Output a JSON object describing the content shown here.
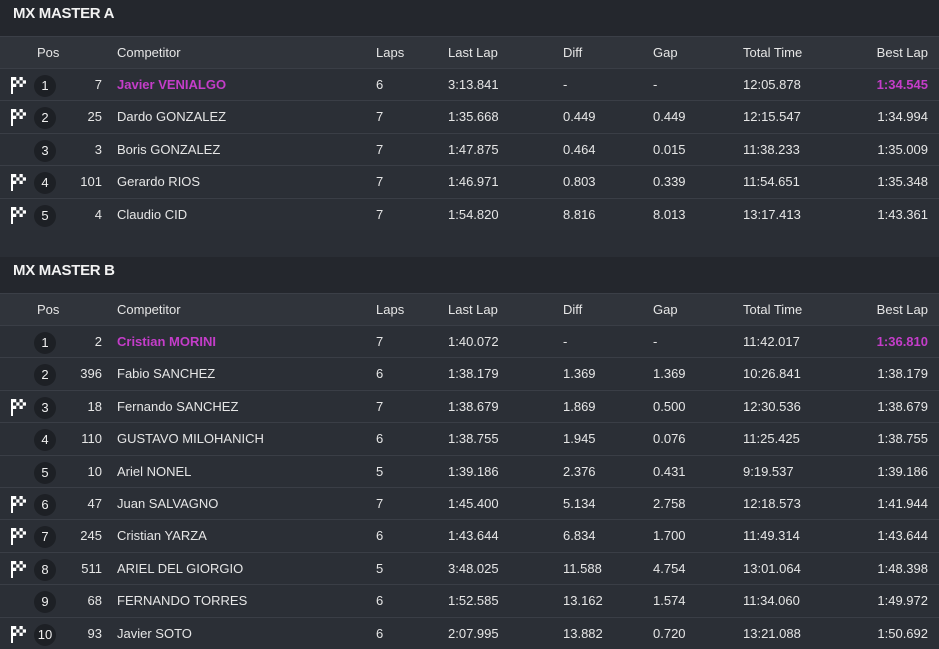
{
  "sections": [
    {
      "title": "MX MASTER A",
      "header": [
        "Pos",
        "Competitor",
        "Laps",
        "Last Lap",
        "Diff",
        "Gap",
        "Total Time",
        "Best Lap"
      ],
      "flags": [
        true,
        true,
        false,
        true,
        true
      ],
      "rows": [
        [
          "1",
          "7",
          "Javier VENIALGO",
          "6",
          "3:13.841",
          "-",
          "-",
          "12:05.878",
          "1:34.545"
        ],
        [
          "2",
          "25",
          "Dardo GONZALEZ",
          "7",
          "1:35.668",
          "0.449",
          "0.449",
          "12:15.547",
          "1:34.994"
        ],
        [
          "3",
          "3",
          "Boris GONZALEZ",
          "7",
          "1:47.875",
          "0.464",
          "0.015",
          "11:38.233",
          "1:35.009"
        ],
        [
          "4",
          "101",
          "Gerardo RIOS",
          "7",
          "1:46.971",
          "0.803",
          "0.339",
          "11:54.651",
          "1:35.348"
        ],
        [
          "5",
          "4",
          "Claudio CID",
          "7",
          "1:54.820",
          "8.816",
          "8.013",
          "13:17.413",
          "1:43.361"
        ]
      ]
    },
    {
      "title": "MX MASTER B",
      "header": [
        "Pos",
        "Competitor",
        "Laps",
        "Last Lap",
        "Diff",
        "Gap",
        "Total Time",
        "Best Lap"
      ],
      "flags": [
        false,
        false,
        true,
        false,
        false,
        true,
        true,
        true,
        false,
        true
      ],
      "rows": [
        [
          "1",
          "2",
          "Cristian MORINI",
          "7",
          "1:40.072",
          "-",
          "-",
          "11:42.017",
          "1:36.810"
        ],
        [
          "2",
          "396",
          "Fabio SANCHEZ",
          "6",
          "1:38.179",
          "1.369",
          "1.369",
          "10:26.841",
          "1:38.179"
        ],
        [
          "3",
          "18",
          "Fernando SANCHEZ",
          "7",
          "1:38.679",
          "1.869",
          "0.500",
          "12:30.536",
          "1:38.679"
        ],
        [
          "4",
          "110",
          "GUSTAVO MILOHANICH",
          "6",
          "1:38.755",
          "1.945",
          "0.076",
          "11:25.425",
          "1:38.755"
        ],
        [
          "5",
          "10",
          "Ariel NONEL",
          "5",
          "1:39.186",
          "2.376",
          "0.431",
          "9:19.537",
          "1:39.186"
        ],
        [
          "6",
          "47",
          "Juan SALVAGNO",
          "7",
          "1:45.400",
          "5.134",
          "2.758",
          "12:18.573",
          "1:41.944"
        ],
        [
          "7",
          "245",
          "Cristian YARZA",
          "6",
          "1:43.644",
          "6.834",
          "1.700",
          "11:49.314",
          "1:43.644"
        ],
        [
          "8",
          "511",
          "ARIEL DEL GIORGIO",
          "5",
          "3:48.025",
          "11.588",
          "4.754",
          "13:01.064",
          "1:48.398"
        ],
        [
          "9",
          "68",
          "FERNANDO TORRES",
          "6",
          "1:52.585",
          "13.162",
          "1.574",
          "11:34.060",
          "1:49.972"
        ],
        [
          "10",
          "93",
          "Javier SOTO",
          "6",
          "2:07.995",
          "13.882",
          "0.720",
          "13:21.088",
          "1:50.692"
        ]
      ]
    }
  ]
}
